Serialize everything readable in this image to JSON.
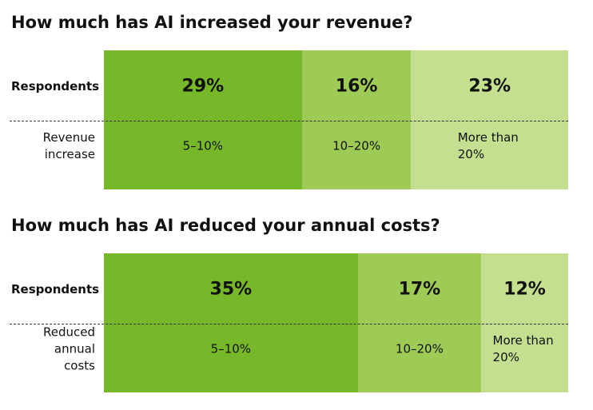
{
  "chart_data": [
    {
      "type": "bar",
      "title": "How much has AI increased your revenue?",
      "row_label": "Respondents",
      "category_label": "Revenue increase",
      "categories": [
        "5–10%",
        "10–20%",
        "More than 20%"
      ],
      "values": [
        29,
        16,
        23
      ],
      "value_labels": [
        "29%",
        "16%",
        "23%"
      ],
      "colors": [
        "#76b82a",
        "#9ecb55",
        "#c3df8f"
      ]
    },
    {
      "type": "bar",
      "title": "How much has AI reduced your annual costs?",
      "row_label": "Respondents",
      "category_label": "Reduced annual costs",
      "categories": [
        "5–10%",
        "10–20%",
        "More than 20%"
      ],
      "values": [
        35,
        17,
        12
      ],
      "value_labels": [
        "35%",
        "17%",
        "12%"
      ],
      "colors": [
        "#76b82a",
        "#9ecb55",
        "#c3df8f"
      ]
    }
  ]
}
